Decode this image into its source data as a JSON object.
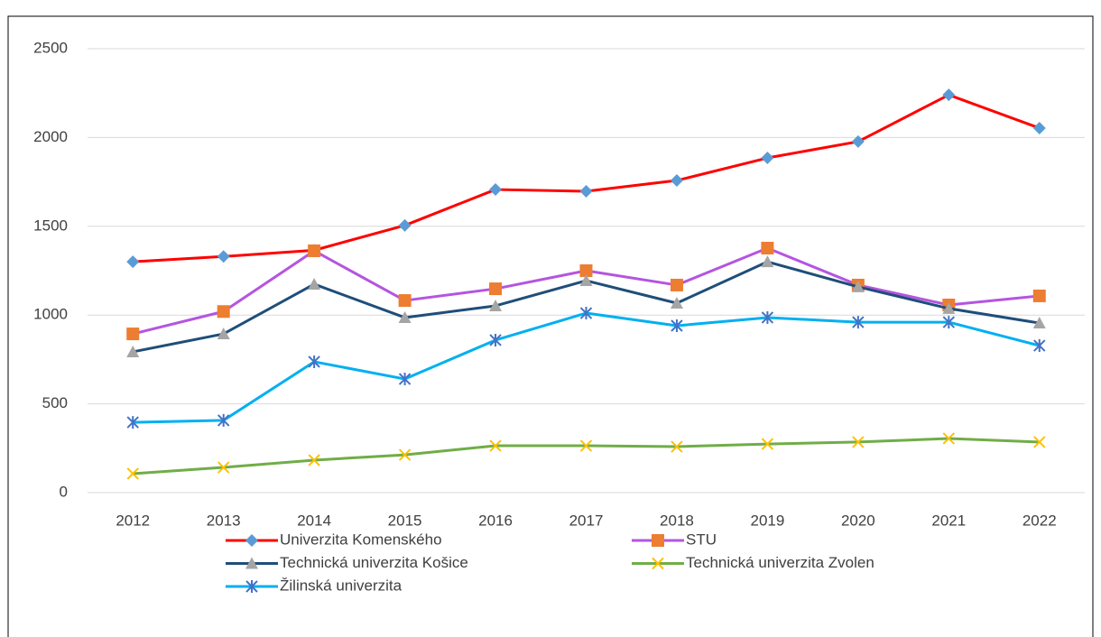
{
  "chart_data": {
    "type": "line",
    "categories": [
      "2012",
      "2013",
      "2014",
      "2015",
      "2016",
      "2017",
      "2018",
      "2019",
      "2020",
      "2021",
      "2022"
    ],
    "series": [
      {
        "name": "Univerzita Komenského",
        "color": "#ff0000",
        "marker": "diamond",
        "marker_color": "#5b9bd5",
        "values": [
          1300,
          1330,
          1365,
          1505,
          1707,
          1697,
          1758,
          1885,
          1977,
          2240,
          2053
        ]
      },
      {
        "name": "STU",
        "color": "#b455e0",
        "marker": "square",
        "marker_color": "#ed7d31",
        "values": [
          894,
          1020,
          1362,
          1082,
          1148,
          1250,
          1169,
          1377,
          1169,
          1057,
          1108
        ]
      },
      {
        "name": "Technická univerzita Košice",
        "color": "#1f4e79",
        "marker": "triangle",
        "marker_color": "#a5a5a5",
        "values": [
          793,
          894,
          1174,
          986,
          1052,
          1194,
          1067,
          1300,
          1159,
          1037,
          955
        ]
      },
      {
        "name": "Technická univerzita Zvolen",
        "color": "#70ad47",
        "marker": "x",
        "marker_color": "#ffc000",
        "values": [
          107,
          142,
          183,
          213,
          264,
          264,
          259,
          274,
          285,
          305,
          285
        ]
      },
      {
        "name": "Žilinská univerzita",
        "color": "#00b0f0",
        "marker": "asterisk",
        "marker_color": "#4472c4",
        "values": [
          396,
          407,
          737,
          640,
          859,
          1011,
          940,
          986,
          960,
          960,
          828
        ]
      }
    ],
    "ylim": [
      0,
      2500
    ],
    "yticks": [
      0,
      500,
      1000,
      1500,
      2000,
      2500
    ],
    "grid": true,
    "legend": "bottom"
  }
}
